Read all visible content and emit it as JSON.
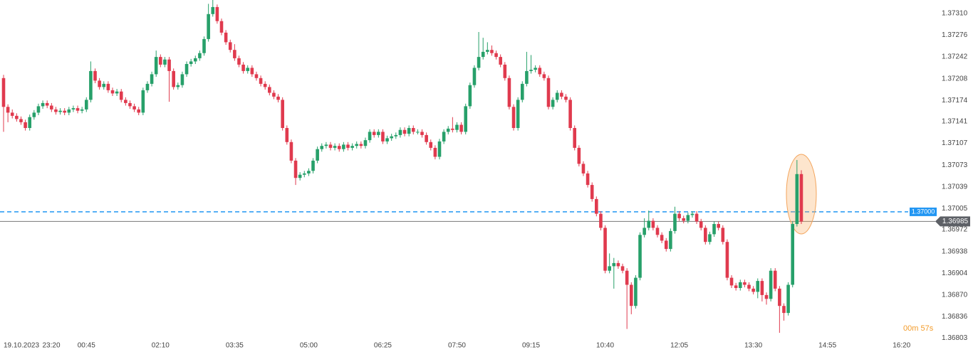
{
  "chart_data": {
    "type": "candlestick",
    "date": "19.10.2023",
    "countdown": "00m 57s",
    "up_color": "#27a06a",
    "down_color": "#e03a4e",
    "categories": [
      null,
      null,
      "23:20",
      null,
      null,
      null,
      null,
      null,
      null,
      null,
      null,
      null,
      null,
      null,
      null,
      null,
      null,
      null,
      null,
      "00:45",
      null,
      null,
      null,
      null,
      null,
      null,
      null,
      null,
      null,
      null,
      null,
      null,
      null,
      null,
      null,
      null,
      "02:10",
      null,
      null,
      null,
      null,
      null,
      null,
      null,
      null,
      null,
      null,
      null,
      null,
      null,
      null,
      null,
      null,
      "03:35",
      null,
      null,
      null,
      null,
      null,
      null,
      null,
      null,
      null,
      null,
      null,
      null,
      null,
      null,
      null,
      null,
      "05:00",
      null,
      null,
      null,
      null,
      null,
      null,
      null,
      null,
      null,
      null,
      null,
      null,
      null,
      null,
      null,
      null,
      "06:25",
      null,
      null,
      null,
      null,
      null,
      null,
      null,
      null,
      null,
      null,
      null,
      null,
      null,
      null,
      null,
      null,
      "07:50",
      null,
      null,
      null,
      null,
      null,
      null,
      null,
      null,
      null,
      null,
      null,
      null,
      null,
      null,
      null,
      null,
      "09:15",
      null,
      null,
      null,
      null,
      null,
      null,
      null,
      null,
      null,
      null,
      null,
      null,
      null,
      null,
      null,
      null,
      "10:40",
      null,
      null,
      null,
      null,
      null,
      null,
      null,
      null,
      null,
      null,
      null,
      null,
      null,
      null,
      null,
      null,
      "12:05",
      null,
      null,
      null,
      null,
      null,
      null,
      null,
      null,
      null,
      null,
      null,
      null,
      null,
      null,
      null,
      null,
      "13:30",
      null,
      null,
      null,
      null,
      null,
      null,
      null,
      null,
      null,
      null,
      null,
      null,
      null,
      null,
      null,
      null,
      "14:55",
      null,
      null,
      null,
      null,
      null,
      null,
      null,
      null,
      null,
      null,
      null,
      null,
      null,
      null,
      null,
      null,
      "16:20"
    ],
    "open": [
      1.37209,
      1.37164,
      1.37155,
      1.3715,
      1.37145,
      1.3714,
      1.37131,
      1.37148,
      1.37155,
      1.37165,
      1.3717,
      1.37166,
      1.3716,
      1.37156,
      1.37158,
      1.37155,
      1.3716,
      1.37162,
      1.37158,
      1.3716,
      1.37175,
      1.3722,
      1.37205,
      1.37195,
      1.372,
      1.3719,
      1.37185,
      1.37188,
      1.37175,
      1.3717,
      1.37165,
      1.3716,
      1.37155,
      1.3719,
      1.372,
      1.37215,
      1.37242,
      1.3723,
      1.37238,
      1.3722,
      1.37195,
      1.37198,
      1.37215,
      1.37231,
      1.37235,
      1.3724,
      1.37248,
      1.3727,
      1.37309,
      1.3732,
      1.37298,
      1.3728,
      1.37265,
      1.37253,
      1.3724,
      1.3723,
      1.3722,
      1.37225,
      1.37215,
      1.37209,
      1.372,
      1.37195,
      1.37186,
      1.3718,
      1.37175,
      1.37131,
      1.37109,
      1.3708,
      1.37053,
      1.37058,
      1.3706,
      1.37064,
      1.3708,
      1.37098,
      1.37103,
      1.37105,
      1.371,
      1.37103,
      1.37098,
      1.37105,
      1.371,
      1.37103,
      1.37106,
      1.37103,
      1.37112,
      1.37125,
      1.3712,
      1.37125,
      1.3711,
      1.37115,
      1.37118,
      1.3712,
      1.37128,
      1.37122,
      1.37131,
      1.37125,
      1.37125,
      1.3712,
      1.37109,
      1.371,
      1.37086,
      1.3711,
      1.37125,
      1.3713,
      1.37128,
      1.37136,
      1.37125,
      1.37165,
      1.37198,
      1.37225,
      1.37242,
      1.3725,
      1.37253,
      1.37248,
      1.37242,
      1.3723,
      1.37209,
      1.37164,
      1.37131,
      1.37175,
      1.372,
      1.3722,
      1.37222,
      1.37225,
      1.37215,
      1.37209,
      1.37164,
      1.37175,
      1.37186,
      1.3718,
      1.37175,
      1.37131,
      1.371,
      1.37075,
      1.3706,
      1.37042,
      1.3702,
      1.36997,
      1.36975,
      1.36908,
      1.36915,
      1.3692,
      1.36915,
      1.36908,
      1.36886,
      1.36853,
      1.36897,
      1.36964,
      1.36975,
      1.36986,
      1.36975,
      1.36964,
      1.36955,
      1.36942,
      1.3697,
      1.36997,
      1.3699,
      1.36986,
      1.36995,
      1.36997,
      1.36985,
      1.36975,
      1.36953,
      1.36965,
      1.36981,
      1.36975,
      1.36953,
      1.36897,
      1.36885,
      1.36881,
      1.3689,
      1.36886,
      1.3688,
      1.36875,
      1.36892,
      1.3687,
      1.36864,
      1.36908,
      1.3688,
      1.36853,
      1.36842,
      1.36886,
      1.36981,
      1.37059,
      null,
      null,
      null,
      null,
      null,
      null,
      null,
      null,
      null,
      null,
      null,
      null,
      null,
      null,
      null,
      null,
      null,
      null,
      null,
      null,
      null,
      null,
      null
    ],
    "high": [
      1.37214,
      1.37168,
      1.3716,
      1.37154,
      1.37149,
      1.37144,
      1.37152,
      1.37159,
      1.37169,
      1.37174,
      1.37174,
      1.3717,
      1.37164,
      1.37162,
      1.37162,
      1.37164,
      1.37166,
      1.37166,
      1.37164,
      1.37179,
      1.37235,
      1.37224,
      1.37209,
      1.37204,
      1.37204,
      1.37194,
      1.37192,
      1.37192,
      1.37179,
      1.37174,
      1.37169,
      1.37164,
      1.37194,
      1.37204,
      1.37219,
      1.37252,
      1.37246,
      1.37242,
      1.37242,
      1.37224,
      1.37202,
      1.37219,
      1.37235,
      1.37239,
      1.37244,
      1.37252,
      1.37274,
      1.37325,
      1.37331,
      1.37324,
      1.37302,
      1.37284,
      1.37269,
      1.37262,
      1.37244,
      1.37234,
      1.37229,
      1.37229,
      1.37219,
      1.37213,
      1.37204,
      1.37199,
      1.3719,
      1.37184,
      1.37179,
      1.37135,
      1.37113,
      1.37084,
      1.37062,
      1.37064,
      1.37068,
      1.37084,
      1.37102,
      1.37107,
      1.37109,
      1.37109,
      1.37107,
      1.37107,
      1.37109,
      1.37109,
      1.37107,
      1.3711,
      1.3711,
      1.37116,
      1.37129,
      1.37129,
      1.37129,
      1.37129,
      1.37119,
      1.37122,
      1.37124,
      1.37132,
      1.37132,
      1.37135,
      1.37135,
      1.37129,
      1.37129,
      1.37124,
      1.37113,
      1.37104,
      1.37114,
      1.37129,
      1.37134,
      1.37148,
      1.3714,
      1.3714,
      1.37169,
      1.37202,
      1.37229,
      1.37281,
      1.37272,
      1.37265,
      1.3726,
      1.37252,
      1.37246,
      1.37234,
      1.37213,
      1.37168,
      1.37179,
      1.37204,
      1.3725,
      1.37245,
      1.37229,
      1.37229,
      1.37219,
      1.37213,
      1.37179,
      1.3719,
      1.3719,
      1.37184,
      1.37179,
      1.37135,
      1.37104,
      1.37079,
      1.37064,
      1.37046,
      1.37024,
      1.37001,
      1.36979,
      1.36935,
      1.36928,
      1.36924,
      1.36919,
      1.36912,
      1.3689,
      1.36901,
      1.36968,
      1.3699,
      1.37002,
      1.3699,
      1.36979,
      1.36968,
      1.36959,
      1.36974,
      1.37008,
      1.37001,
      1.36994,
      1.36999,
      1.37001,
      1.37001,
      1.36989,
      1.36979,
      1.36969,
      1.36985,
      1.36985,
      1.36979,
      1.36957,
      1.36901,
      1.36889,
      1.36894,
      1.36894,
      1.3689,
      1.36884,
      1.36896,
      1.36896,
      1.36874,
      1.36912,
      1.36912,
      1.36884,
      1.36857,
      1.3689,
      1.36985,
      1.37081,
      1.37065,
      null,
      null,
      null,
      null,
      null,
      null,
      null,
      null,
      null,
      null,
      null,
      null,
      null,
      null,
      null,
      null,
      null,
      null,
      null,
      null,
      null,
      null,
      null
    ],
    "low": [
      1.37125,
      1.3714,
      1.37146,
      1.37141,
      1.37136,
      1.37127,
      1.37127,
      1.37144,
      1.37151,
      1.37161,
      1.37162,
      1.37156,
      1.37152,
      1.37152,
      1.37151,
      1.37151,
      1.37156,
      1.37154,
      1.37154,
      1.37156,
      1.37171,
      1.37201,
      1.37191,
      1.37191,
      1.37186,
      1.37181,
      1.37181,
      1.37171,
      1.37166,
      1.37161,
      1.37156,
      1.37151,
      1.37151,
      1.37186,
      1.37196,
      1.37211,
      1.37226,
      1.37226,
      1.37172,
      1.37191,
      1.37191,
      1.37194,
      1.37211,
      1.37227,
      1.37231,
      1.37236,
      1.37244,
      1.37266,
      1.37305,
      1.37294,
      1.37276,
      1.37261,
      1.37249,
      1.37236,
      1.37226,
      1.37216,
      1.37216,
      1.37211,
      1.37205,
      1.37196,
      1.37191,
      1.37182,
      1.37176,
      1.37171,
      1.37127,
      1.37105,
      1.37076,
      1.37042,
      1.37049,
      1.37054,
      1.37056,
      1.3706,
      1.37076,
      1.37094,
      1.37099,
      1.37096,
      1.37096,
      1.37094,
      1.37094,
      1.37096,
      1.37096,
      1.37099,
      1.37099,
      1.37099,
      1.37108,
      1.37116,
      1.37116,
      1.37106,
      1.37106,
      1.37111,
      1.37114,
      1.37116,
      1.37118,
      1.37118,
      1.37121,
      1.37121,
      1.37116,
      1.37105,
      1.37096,
      1.37082,
      1.37082,
      1.37106,
      1.37121,
      1.37124,
      1.37124,
      1.37121,
      1.37121,
      1.37161,
      1.37194,
      1.37221,
      1.37238,
      1.37246,
      1.37244,
      1.37238,
      1.37226,
      1.37205,
      1.3716,
      1.37127,
      1.37127,
      1.37171,
      1.37196,
      1.37216,
      1.37218,
      1.37211,
      1.37205,
      1.3716,
      1.3716,
      1.37171,
      1.37176,
      1.37171,
      1.37127,
      1.37096,
      1.37071,
      1.37056,
      1.37038,
      1.37016,
      1.36993,
      1.36971,
      1.36904,
      1.36904,
      1.3688,
      1.36911,
      1.36904,
      1.36817,
      1.3684,
      1.36849,
      1.36893,
      1.3696,
      1.36971,
      1.36971,
      1.3696,
      1.36951,
      1.36938,
      1.36938,
      1.36966,
      1.36986,
      1.36982,
      1.36982,
      1.36991,
      1.36981,
      1.36971,
      1.36949,
      1.36949,
      1.36961,
      1.36971,
      1.36949,
      1.36893,
      1.36881,
      1.36877,
      1.36877,
      1.36882,
      1.36876,
      1.36871,
      1.36865,
      1.3686,
      1.36855,
      1.3686,
      1.36876,
      1.36811,
      1.3683,
      1.36838,
      1.36882,
      1.36977,
      1.36981,
      null,
      null,
      null,
      null,
      null,
      null,
      null,
      null,
      null,
      null,
      null,
      null,
      null,
      null,
      null,
      null,
      null,
      null,
      null,
      null,
      null,
      null,
      null
    ],
    "close": [
      1.37164,
      1.37155,
      1.3715,
      1.37145,
      1.3714,
      1.37131,
      1.37148,
      1.37155,
      1.37165,
      1.3717,
      1.37166,
      1.3716,
      1.37156,
      1.37158,
      1.37155,
      1.3716,
      1.37162,
      1.37158,
      1.3716,
      1.37175,
      1.3722,
      1.37205,
      1.37195,
      1.372,
      1.3719,
      1.37185,
      1.37188,
      1.37175,
      1.3717,
      1.37165,
      1.3716,
      1.37155,
      1.3719,
      1.372,
      1.37215,
      1.37242,
      1.3723,
      1.37238,
      1.3722,
      1.37195,
      1.37198,
      1.37215,
      1.37231,
      1.37235,
      1.3724,
      1.37248,
      1.3727,
      1.37309,
      1.3732,
      1.37298,
      1.3728,
      1.37265,
      1.37253,
      1.3724,
      1.3723,
      1.3722,
      1.37225,
      1.37215,
      1.37209,
      1.372,
      1.37195,
      1.37186,
      1.3718,
      1.37175,
      1.37131,
      1.37109,
      1.3708,
      1.37053,
      1.37058,
      1.3706,
      1.37064,
      1.3708,
      1.37098,
      1.37103,
      1.37105,
      1.371,
      1.37103,
      1.37098,
      1.37105,
      1.371,
      1.37103,
      1.37106,
      1.37103,
      1.37112,
      1.37125,
      1.3712,
      1.37125,
      1.3711,
      1.37115,
      1.37118,
      1.3712,
      1.37128,
      1.37122,
      1.37131,
      1.37125,
      1.37125,
      1.3712,
      1.37109,
      1.371,
      1.37086,
      1.3711,
      1.37125,
      1.3713,
      1.37128,
      1.37136,
      1.37125,
      1.37165,
      1.37198,
      1.37225,
      1.37242,
      1.3725,
      1.37253,
      1.37248,
      1.37242,
      1.3723,
      1.37209,
      1.37164,
      1.37131,
      1.37175,
      1.372,
      1.3722,
      1.37222,
      1.37225,
      1.37215,
      1.37209,
      1.37164,
      1.37175,
      1.37186,
      1.3718,
      1.37175,
      1.37131,
      1.371,
      1.37075,
      1.3706,
      1.37042,
      1.3702,
      1.36997,
      1.36975,
      1.36908,
      1.36915,
      1.3692,
      1.36915,
      1.36908,
      1.36886,
      1.36853,
      1.36897,
      1.36964,
      1.36975,
      1.36986,
      1.36975,
      1.36964,
      1.36955,
      1.36942,
      1.3697,
      1.36997,
      1.3699,
      1.36986,
      1.36995,
      1.36997,
      1.36985,
      1.36975,
      1.36953,
      1.36965,
      1.36981,
      1.36975,
      1.36953,
      1.36897,
      1.36885,
      1.36881,
      1.3689,
      1.36886,
      1.3688,
      1.36875,
      1.36892,
      1.3687,
      1.36864,
      1.36908,
      1.3688,
      1.36853,
      1.36842,
      1.36886,
      1.36981,
      1.37059,
      1.36985,
      null,
      null,
      null,
      null,
      null,
      null,
      null,
      null,
      null,
      null,
      null,
      null,
      null,
      null,
      null,
      null,
      null,
      null,
      null,
      null,
      null,
      null,
      null
    ],
    "ylim": [
      1.36781,
      1.37331
    ],
    "yticks": [
      {
        "value": 1.3731,
        "label": "1.37310"
      },
      {
        "value": 1.37276,
        "label": "1.37276"
      },
      {
        "value": 1.37242,
        "label": "1.37242"
      },
      {
        "value": 1.37208,
        "label": "1.37208"
      },
      {
        "value": 1.37174,
        "label": "1.37174"
      },
      {
        "value": 1.37141,
        "label": "1.37141"
      },
      {
        "value": 1.37107,
        "label": "1.37107"
      },
      {
        "value": 1.37073,
        "label": "1.37073"
      },
      {
        "value": 1.37039,
        "label": "1.37039"
      },
      {
        "value": 1.37005,
        "label": "1.37005"
      },
      {
        "value": 1.36972,
        "label": "1.36972"
      },
      {
        "value": 1.36938,
        "label": "1.36938"
      },
      {
        "value": 1.36904,
        "label": "1.36904"
      },
      {
        "value": 1.3687,
        "label": "1.36870"
      },
      {
        "value": 1.36836,
        "label": "1.36836"
      },
      {
        "value": 1.36803,
        "label": "1.36803"
      }
    ],
    "level": {
      "value": 1.37,
      "label": "1.37000",
      "color": "#2196f3"
    },
    "current_price": {
      "value": 1.36985,
      "label": "1.36985",
      "color": "#5d6066"
    }
  }
}
